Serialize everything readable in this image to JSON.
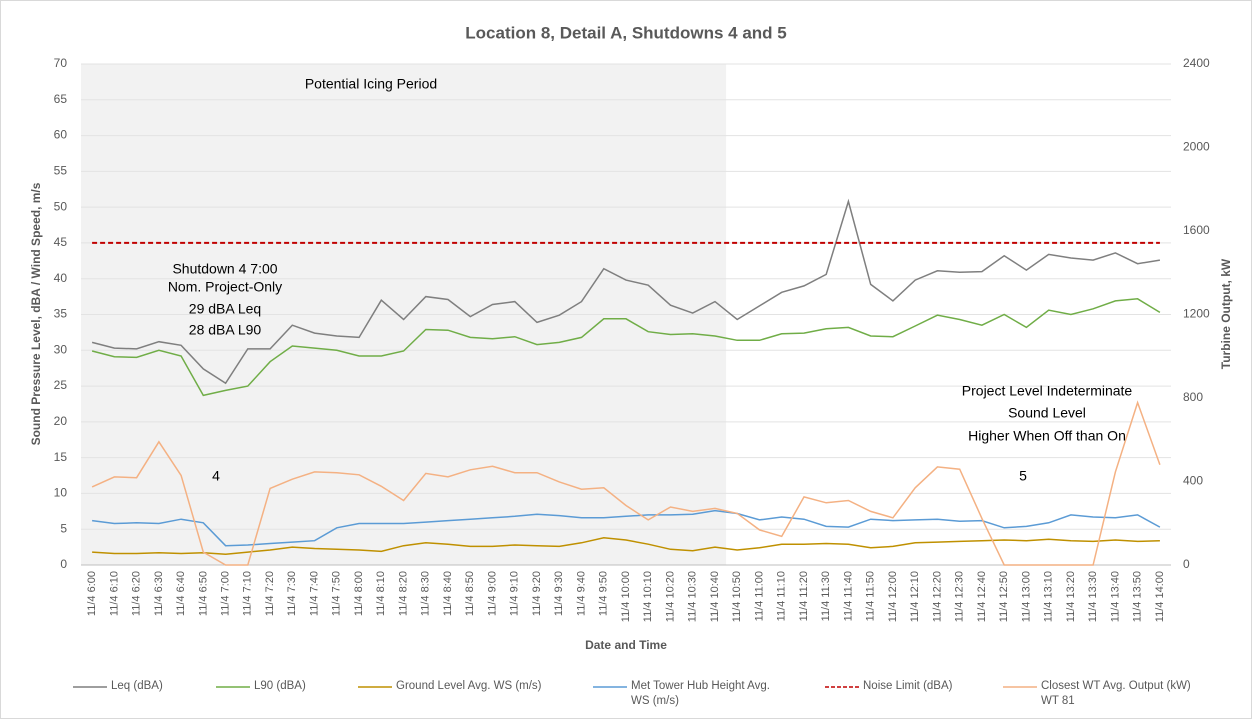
{
  "chart_data": {
    "type": "line",
    "title": "Location 8, Detail A, Shutdowns 4 and 5",
    "x_label": "Date and Time",
    "y_label": "Sound Pressure Level, dBA / Wind Speed, m/s",
    "y2_label": "Turbine Output, kW",
    "categories": [
      "11/4 6:00",
      "11/4 6:10",
      "11/4 6:20",
      "11/4 6:30",
      "11/4 6:40",
      "11/4 6:50",
      "11/4 7:00",
      "11/4 7:10",
      "11/4 7:20",
      "11/4 7:30",
      "11/4 7:40",
      "11/4 7:50",
      "11/4 8:00",
      "11/4 8:10",
      "11/4 8:20",
      "11/4 8:30",
      "11/4 8:40",
      "11/4 8:50",
      "11/4 9:00",
      "11/4 9:10",
      "11/4 9:20",
      "11/4 9:30",
      "11/4 9:40",
      "11/4 9:50",
      "11/4 10:00",
      "11/4 10:10",
      "11/4 10:20",
      "11/4 10:30",
      "11/4 10:40",
      "11/4 10:50",
      "11/4 11:00",
      "11/4 11:10",
      "11/4 11:20",
      "11/4 11:30",
      "11/4 11:40",
      "11/4 11:50",
      "11/4 12:00",
      "11/4 12:10",
      "11/4 12:20",
      "11/4 12:30",
      "11/4 12:40",
      "11/4 12:50",
      "11/4 13:00",
      "11/4 13:10",
      "11/4 13:20",
      "11/4 13:30",
      "11/4 13:40",
      "11/4 13:50",
      "11/4 14:00"
    ],
    "series": [
      {
        "name": "Leq (dBA)",
        "color": "#7f7f7f",
        "values": [
          31.1,
          30.3,
          30.2,
          31.2,
          30.7,
          27.4,
          25.4,
          30.2,
          30.2,
          33.5,
          32.4,
          32.0,
          31.8,
          37.0,
          34.3,
          37.5,
          37.1,
          34.7,
          36.4,
          36.8,
          33.9,
          34.9,
          36.8,
          41.4,
          39.8,
          39.1,
          36.3,
          35.2,
          36.8,
          34.3,
          36.2,
          38.1,
          39.0,
          40.6,
          50.8,
          39.2,
          36.9,
          39.8,
          41.1,
          40.9,
          41.0,
          43.2,
          41.2,
          43.4,
          42.9,
          42.6,
          43.6,
          42.1,
          42.6
        ]
      },
      {
        "name": "L90 (dBA)",
        "color": "#70ad47",
        "values": [
          29.9,
          29.1,
          29.0,
          30.0,
          29.2,
          23.7,
          24.4,
          25.0,
          28.4,
          30.6,
          30.3,
          30.0,
          29.2,
          29.2,
          29.9,
          32.9,
          32.8,
          31.8,
          31.6,
          31.9,
          30.8,
          31.1,
          31.8,
          34.4,
          34.4,
          32.6,
          32.2,
          32.3,
          32.0,
          31.4,
          31.4,
          32.3,
          32.4,
          33.0,
          33.2,
          32.0,
          31.9,
          33.4,
          34.9,
          34.3,
          33.5,
          35.0,
          33.2,
          35.6,
          35.0,
          35.8,
          36.9,
          37.2,
          35.3
        ]
      },
      {
        "name": "Ground Level Avg. WS (m/s)",
        "color": "#bf9000",
        "values": [
          1.8,
          1.6,
          1.6,
          1.7,
          1.6,
          1.7,
          1.5,
          1.8,
          2.1,
          2.5,
          2.3,
          2.2,
          2.1,
          1.9,
          2.7,
          3.1,
          2.9,
          2.6,
          2.6,
          2.8,
          2.7,
          2.6,
          3.1,
          3.8,
          3.5,
          2.9,
          2.2,
          2.0,
          2.5,
          2.1,
          2.4,
          2.9,
          2.9,
          3.0,
          2.9,
          2.4,
          2.6,
          3.1,
          3.2,
          3.3,
          3.4,
          3.5,
          3.4,
          3.6,
          3.4,
          3.3,
          3.5,
          3.3,
          3.4
        ]
      },
      {
        "name": "Met Tower Hub Height Avg. WS (m/s)",
        "color": "#5b9bd5",
        "values": [
          6.2,
          5.8,
          5.9,
          5.8,
          6.4,
          5.9,
          2.7,
          2.8,
          3.0,
          3.2,
          3.4,
          5.2,
          5.8,
          5.8,
          5.8,
          6.0,
          6.2,
          6.4,
          6.6,
          6.8,
          7.1,
          6.9,
          6.6,
          6.6,
          6.8,
          7.0,
          7.0,
          7.1,
          7.6,
          7.2,
          6.3,
          6.7,
          6.4,
          5.4,
          5.3,
          6.4,
          6.2,
          6.3,
          6.4,
          6.1,
          6.2,
          5.2,
          5.4,
          5.9,
          7.0,
          6.7,
          6.6,
          7.0,
          5.3
        ]
      },
      {
        "name": "Noise Limit (dBA)",
        "color": "#c00000",
        "dashed": true,
        "values": [
          45,
          45,
          45,
          45,
          45,
          45,
          45,
          45,
          45,
          45,
          45,
          45,
          45,
          45,
          45,
          45,
          45,
          45,
          45,
          45,
          45,
          45,
          45,
          45,
          45,
          45,
          45,
          45,
          45,
          45,
          45,
          45,
          45,
          45,
          45,
          45,
          45,
          45,
          45,
          45,
          45,
          45,
          45,
          45,
          45,
          45,
          45,
          45,
          45
        ]
      },
      {
        "name": "Closest WT Avg. Output (kW) WT 81",
        "color": "#f4b183",
        "axis": "y2",
        "values": [
          374,
          422,
          418,
          590,
          429,
          62,
          0,
          0,
          367,
          411,
          446,
          442,
          432,
          377,
          309,
          439,
          422,
          456,
          473,
          442,
          442,
          398,
          363,
          370,
          285,
          216,
          278,
          257,
          271,
          247,
          168,
          137,
          326,
          298,
          309,
          257,
          226,
          370,
          470,
          459,
          223,
          0,
          0,
          0,
          0,
          0,
          446,
          778,
          480
        ]
      }
    ],
    "ylim": [
      0,
      70
    ],
    "yticks": [
      0,
      5,
      10,
      15,
      20,
      25,
      30,
      35,
      40,
      45,
      50,
      55,
      60,
      65,
      70
    ],
    "y2lim": [
      0,
      2400
    ],
    "y2ticks": [
      0,
      400,
      800,
      1200,
      1600,
      2000,
      2400
    ],
    "grid": true,
    "annotations": [
      "Potential Icing Period",
      "Shutdown 4 7:00",
      "Nom. Project-Only",
      "29 dBA Leq",
      "28 dBA L90",
      "4",
      "5",
      "Project Level Indeterminate",
      "Sound Level",
      "Higher When Off than On"
    ]
  }
}
